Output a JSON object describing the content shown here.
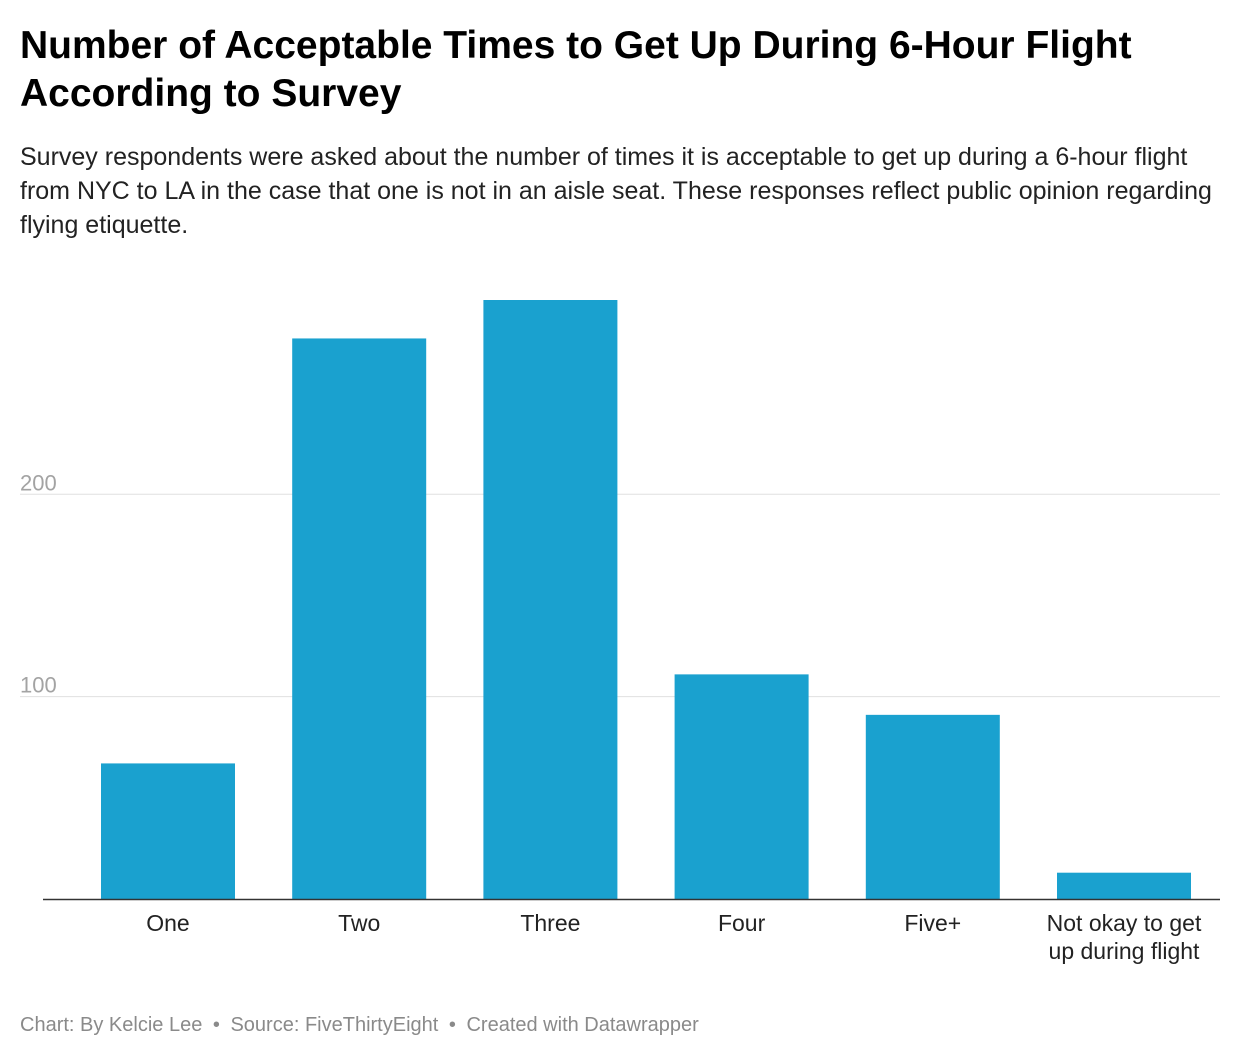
{
  "title": "Number of Acceptable Times to Get Up During 6-Hour Flight According to Survey",
  "subtitle": "Survey respondents were asked about the number of times it is acceptable to get up during a 6-hour flight from NYC to LA in the case that one is not in an aisle seat. These responses reflect public opinion regarding flying etiquette.",
  "footer": {
    "credit": "Chart: By Kelcie Lee",
    "source": "Source: FiveThirtyEight",
    "tool": "Created with Datawrapper",
    "separator": "•"
  },
  "colors": {
    "bar": "#1aa1cf",
    "gridline": "#e0e0e0",
    "baseline": "#333333",
    "tick_text": "#a3a3a3",
    "label_text": "#222222"
  },
  "chart_data": {
    "type": "bar",
    "title": "Number of Acceptable Times to Get Up During 6-Hour Flight According to Survey",
    "xlabel": "",
    "ylabel": "",
    "categories": [
      [
        "One"
      ],
      [
        "Two"
      ],
      [
        "Three"
      ],
      [
        "Four"
      ],
      [
        "Five+"
      ],
      [
        "Not okay to get",
        "up during flight"
      ]
    ],
    "values": [
      67,
      277,
      296,
      111,
      91,
      13
    ],
    "yticks": [
      100,
      200
    ],
    "ylim": [
      0,
      296
    ],
    "grid": true,
    "legend": "none"
  }
}
